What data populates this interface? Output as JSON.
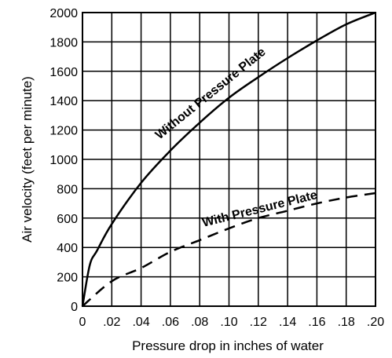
{
  "chart_data": {
    "type": "line",
    "title": "",
    "xlabel": "Pressure drop in inches of water",
    "ylabel": "Air velocity (feet per minute)",
    "xlim": [
      0,
      0.2
    ],
    "ylim": [
      0,
      2000
    ],
    "grid": true,
    "x_ticks": [
      0,
      0.02,
      0.04,
      0.06,
      0.08,
      0.1,
      0.12,
      0.14,
      0.16,
      0.18,
      0.2
    ],
    "x_tick_labels": [
      "0",
      ".02",
      ".04",
      ".06",
      ".08",
      ".10",
      ".12",
      ".14",
      ".16",
      ".18",
      ".20"
    ],
    "y_ticks": [
      0,
      200,
      400,
      600,
      800,
      1000,
      1200,
      1400,
      1600,
      1800,
      2000
    ],
    "y_tick_labels": [
      "0",
      "200",
      "400",
      "600",
      "800",
      "1000",
      "1200",
      "1400",
      "1600",
      "1800",
      "2000"
    ],
    "series": [
      {
        "name": "Without Pressure Plate",
        "style": "solid",
        "x": [
          0,
          0.005,
          0.01,
          0.02,
          0.04,
          0.06,
          0.08,
          0.1,
          0.12,
          0.14,
          0.16,
          0.18,
          0.2
        ],
        "y": [
          0,
          280,
          380,
          560,
          840,
          1060,
          1250,
          1420,
          1560,
          1690,
          1810,
          1920,
          2000
        ]
      },
      {
        "name": "With Pressure Plate",
        "style": "dashed",
        "x": [
          0,
          0.02,
          0.04,
          0.06,
          0.08,
          0.1,
          0.12,
          0.14,
          0.16,
          0.18,
          0.2
        ],
        "y": [
          0,
          170,
          260,
          370,
          450,
          530,
          600,
          650,
          700,
          740,
          770
        ]
      }
    ]
  }
}
